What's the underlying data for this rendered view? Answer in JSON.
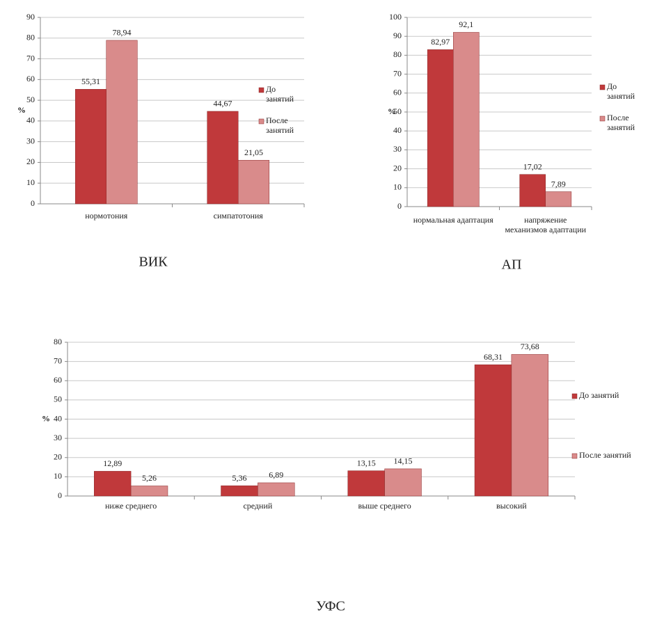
{
  "chart_data": [
    {
      "type": "bar",
      "caption": "ВИК",
      "ylabel": "%",
      "grid": true,
      "categories": [
        "нормотония",
        "симпатотония"
      ],
      "series": [
        {
          "name": "До занятий",
          "color": "#c0393b",
          "values": [
            55.31,
            44.67
          ],
          "value_labels": [
            "55,31",
            "44,67"
          ]
        },
        {
          "name": "После занятий",
          "color": "#d98b8b",
          "values": [
            78.94,
            21.05
          ],
          "value_labels": [
            "78,94",
            "21,05"
          ]
        }
      ],
      "ylim": [
        0,
        90
      ],
      "yticks": [
        0,
        10,
        20,
        30,
        40,
        50,
        60,
        70,
        80,
        90
      ]
    },
    {
      "type": "bar",
      "caption": "АП",
      "ylabel": "%",
      "grid": true,
      "categories": [
        "нормальная адаптация",
        "напряжение механизмов адаптации"
      ],
      "series": [
        {
          "name": "До занятий",
          "color": "#c0393b",
          "values": [
            82.97,
            17.02
          ],
          "value_labels": [
            "82,97",
            "17,02"
          ]
        },
        {
          "name": "После занятий",
          "color": "#d98b8b",
          "values": [
            92.1,
            7.89
          ],
          "value_labels": [
            "92,1",
            "7,89"
          ]
        }
      ],
      "ylim": [
        0,
        100
      ],
      "yticks": [
        0,
        10,
        20,
        30,
        40,
        50,
        60,
        70,
        80,
        90,
        100
      ]
    },
    {
      "type": "bar",
      "caption": "УФС",
      "ylabel": "%",
      "grid": true,
      "categories": [
        "ниже среднего",
        "средний",
        "выше среднего",
        "высокий"
      ],
      "series": [
        {
          "name": "До занятий",
          "color": "#c0393b",
          "values": [
            12.89,
            5.36,
            13.15,
            68.31
          ],
          "value_labels": [
            "12,89",
            "5,36",
            "13,15",
            "68,31"
          ]
        },
        {
          "name": "После занятий",
          "color": "#d98b8b",
          "values": [
            5.26,
            6.89,
            14.15,
            73.68
          ],
          "value_labels": [
            "5,26",
            "6,89",
            "14,15",
            "73,68"
          ]
        }
      ],
      "ylim": [
        0,
        80
      ],
      "yticks": [
        0,
        10,
        20,
        30,
        40,
        50,
        60,
        70,
        80
      ]
    }
  ]
}
